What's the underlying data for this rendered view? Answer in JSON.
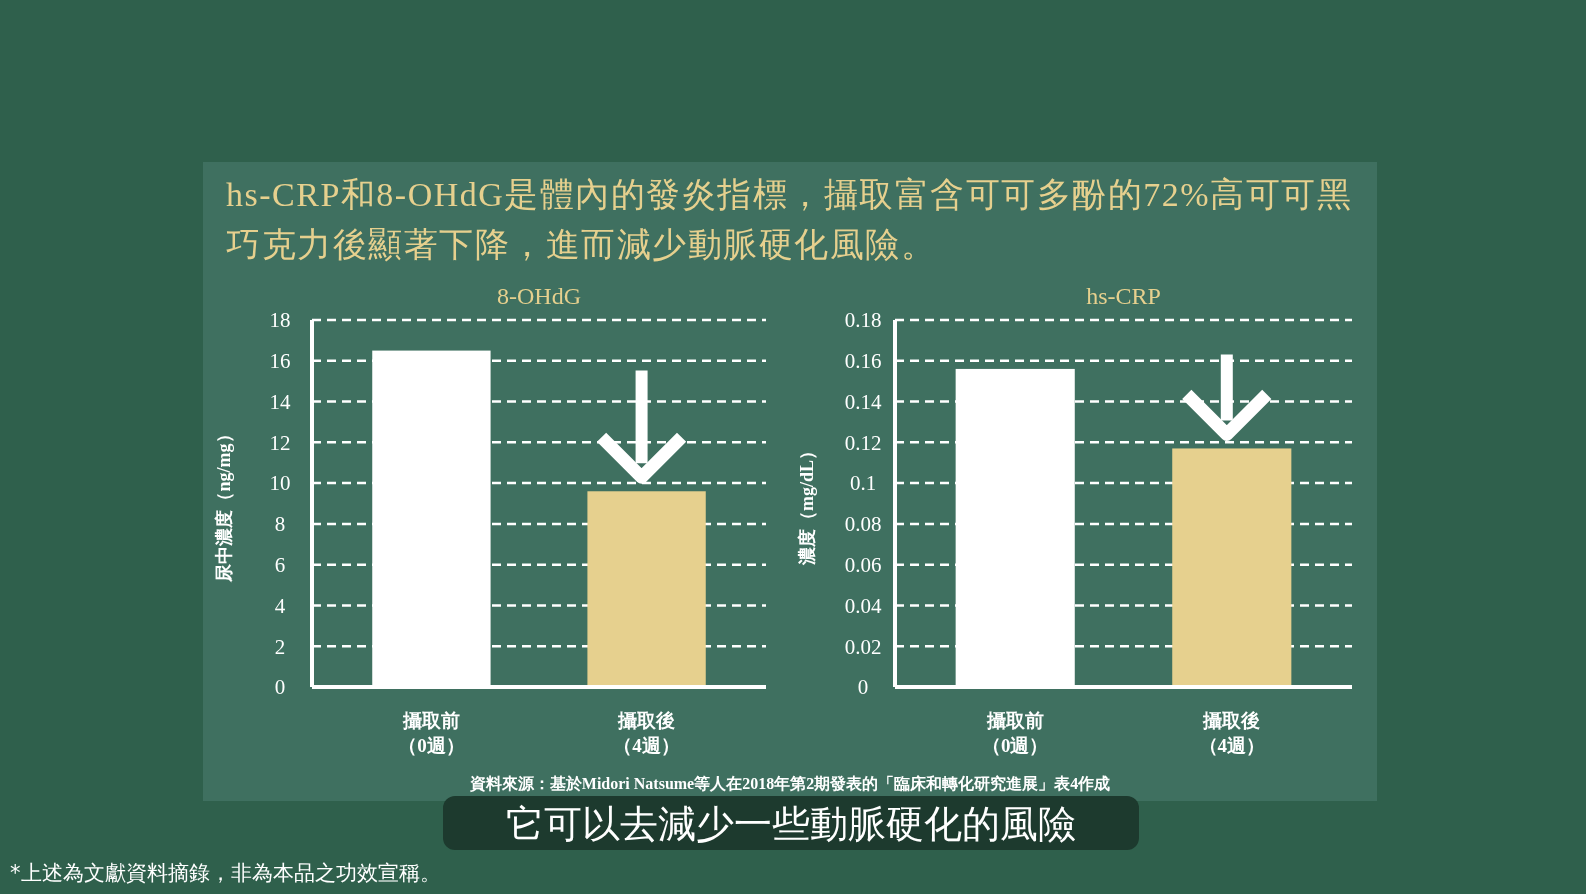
{
  "chart_data": [
    {
      "type": "bar",
      "title": "8-OHdG",
      "ylabel": "尿中濃度（ng/mg）",
      "categories": [
        "攝取前（0週）",
        "攝取後（4週）"
      ],
      "values": [
        16.5,
        9.6
      ],
      "colors": [
        "#ffffff",
        "#e6d08e"
      ],
      "ylim": [
        0,
        18
      ],
      "yticks": [
        0,
        2,
        4,
        6,
        8,
        10,
        12,
        14,
        16,
        18
      ],
      "grid": "y",
      "annotations": [
        "hs-CRP和8-OHdG是體內的發炎指標，攝取富含可可多酚的72%高可可黑巧克力後顯著下降，進而減少動脈硬化風險。",
        "資料來源：基於Midori Natsume等人在2018年第2期發表的「臨床和轉化研究進展」表4作成",
        "它可以去減少一些動脈硬化的風險",
        "*上述為文獻資料摘錄，非為本品之功效宣稱。"
      ]
    },
    {
      "type": "bar",
      "title": "hs-CRP",
      "ylabel": "濃度（mg/dL）",
      "categories": [
        "攝取前（0週）",
        "攝取後（4週）"
      ],
      "values": [
        0.156,
        0.117
      ],
      "colors": [
        "#ffffff",
        "#e6d08e"
      ],
      "ylim": [
        0,
        0.18
      ],
      "yticks": [
        0,
        0.02,
        0.04,
        0.06,
        0.08,
        0.1,
        0.12,
        0.14,
        0.16,
        0.18
      ],
      "grid": "y"
    }
  ]
}
